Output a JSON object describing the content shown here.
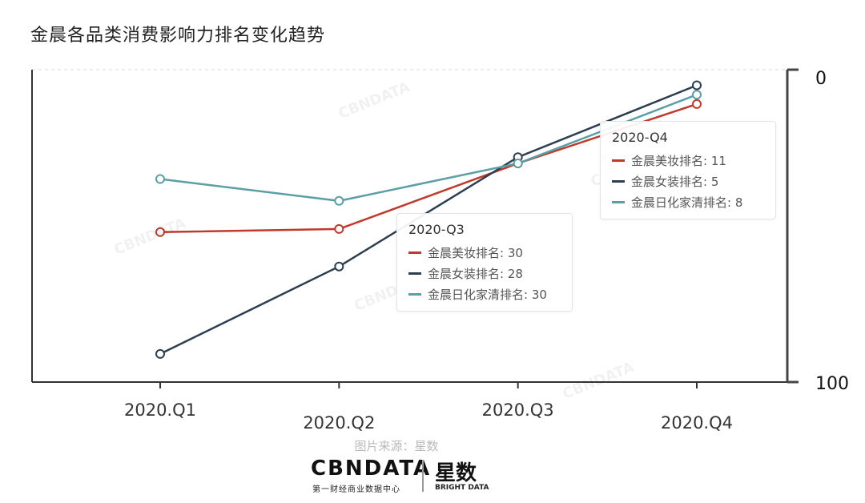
{
  "title": "金晨各品类消费影响力排名变化趋势",
  "chart_data": {
    "type": "line",
    "categories": [
      "2020.Q1",
      "2020.Q2",
      "2020.Q3",
      "2020.Q4"
    ],
    "y_inverted": true,
    "ylim": [
      0,
      100
    ],
    "y_ticks": [
      "0",
      "100"
    ],
    "series": [
      {
        "name": "金晨美妆排名",
        "color": "#c0392b",
        "values": [
          52,
          51,
          30,
          11
        ]
      },
      {
        "name": "金晨女装排名",
        "color": "#2c3e50",
        "values": [
          91,
          63,
          28,
          5
        ]
      },
      {
        "name": "金晨日化家清排名",
        "color": "#5a9ea6",
        "values": [
          35,
          42,
          30,
          8
        ]
      }
    ]
  },
  "tooltips": [
    {
      "title": "2020-Q4",
      "rows": [
        {
          "label": "金晨美妆排名: 11",
          "color": "#c0392b"
        },
        {
          "label": "金晨女装排名: 5",
          "color": "#2c3e50"
        },
        {
          "label": "金晨日化家清排名: 8",
          "color": "#5a9ea6"
        }
      ]
    },
    {
      "title": "2020-Q3",
      "rows": [
        {
          "label": "金晨美妆排名: 30",
          "color": "#c0392b"
        },
        {
          "label": "金晨女装排名: 28",
          "color": "#2c3e50"
        },
        {
          "label": "金晨日化家清排名: 30",
          "color": "#5a9ea6"
        }
      ]
    }
  ],
  "source": "图片来源：星数",
  "logos": {
    "cbn": "CBNDATA",
    "cbn_sub": "第一财经商业数据中心",
    "xs": "星数",
    "xs_sub": "BRIGHT DATA"
  }
}
